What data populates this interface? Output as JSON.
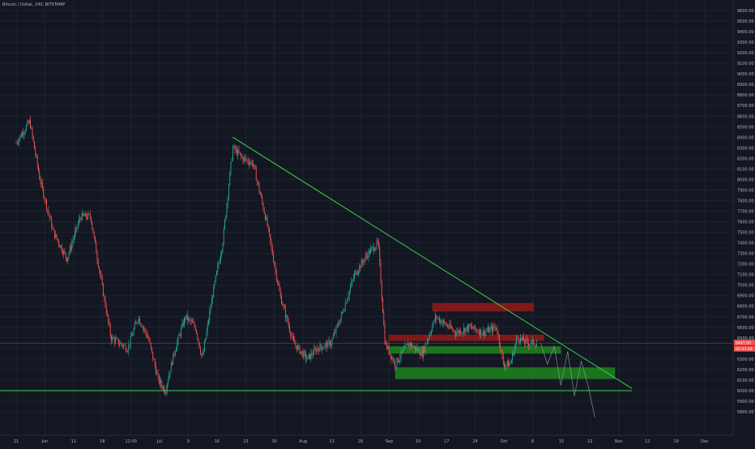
{
  "header": {
    "symbol_title": "Bitcoin / Dollar, 240, BITSTAMP"
  },
  "price_tags": {
    "last_price": "6447.00",
    "countdown": "02:33:48"
  },
  "colors": {
    "background": "#131722",
    "grid": "#1e2230",
    "up_candle": "#26a69a",
    "down_candle": "#ef5350",
    "trendline": "#3fd24a",
    "resistance_zone": "#8b1a1a",
    "support_zone": "#1e7e1e",
    "axis_text": "#b2b5be",
    "price_tag": "#ef5350"
  },
  "chart_data": {
    "type": "candlestick",
    "title": "Bitcoin / Dollar, 240, BITSTAMP",
    "ylim": [
      5700,
      9700
    ],
    "y_ticks": [
      "5800.00",
      "5900.00",
      "6000.00",
      "6100.00",
      "6200.00",
      "6300.00",
      "6400.00",
      "6500.00",
      "6600.00",
      "6700.00",
      "6800.00",
      "6900.00",
      "7000.00",
      "7100.00",
      "7200.00",
      "7300.00",
      "7400.00",
      "7500.00",
      "7600.00",
      "7700.00",
      "7800.00",
      "7900.00",
      "8000.00",
      "8100.00",
      "8200.00",
      "8300.00",
      "8400.00",
      "8500.00",
      "8600.00",
      "8700.00",
      "8800.00",
      "8900.00",
      "9000.00",
      "9100.00",
      "9200.00",
      "9300.00",
      "9400.00",
      "9500.00",
      "9600.00"
    ],
    "x_ticks": [
      "21",
      "Jun",
      "11",
      "18",
      "12:00",
      "Jul",
      "9",
      "16",
      "23",
      "30",
      "Aug",
      "13",
      "20",
      "Sep",
      "10",
      "17",
      "24",
      "Oct",
      "8",
      "15",
      "22",
      "Nov",
      "12",
      "19",
      "Dec"
    ],
    "x_range": [
      "2018-05-20",
      "2018-12-10"
    ],
    "price_path": [
      {
        "date": "2018-05-20",
        "price": 8350
      },
      {
        "date": "2018-05-24",
        "price": 8550
      },
      {
        "date": "2018-05-27",
        "price": 8000
      },
      {
        "date": "2018-05-31",
        "price": 7500
      },
      {
        "date": "2018-06-04",
        "price": 7250
      },
      {
        "date": "2018-06-08",
        "price": 7650
      },
      {
        "date": "2018-06-11",
        "price": 7650
      },
      {
        "date": "2018-06-13",
        "price": 7250
      },
      {
        "date": "2018-06-17",
        "price": 6500
      },
      {
        "date": "2018-06-22",
        "price": 6400
      },
      {
        "date": "2018-06-25",
        "price": 6700
      },
      {
        "date": "2018-06-28",
        "price": 6500
      },
      {
        "date": "2018-07-01",
        "price": 6100
      },
      {
        "date": "2018-07-03",
        "price": 6000
      },
      {
        "date": "2018-07-06",
        "price": 6400
      },
      {
        "date": "2018-07-09",
        "price": 6700
      },
      {
        "date": "2018-07-12",
        "price": 6600
      },
      {
        "date": "2018-07-14",
        "price": 6300
      },
      {
        "date": "2018-07-17",
        "price": 6900
      },
      {
        "date": "2018-07-20",
        "price": 7400
      },
      {
        "date": "2018-07-23",
        "price": 8300
      },
      {
        "date": "2018-07-26",
        "price": 8200
      },
      {
        "date": "2018-07-29",
        "price": 8150
      },
      {
        "date": "2018-08-02",
        "price": 7600
      },
      {
        "date": "2018-08-06",
        "price": 6900
      },
      {
        "date": "2018-08-10",
        "price": 6450
      },
      {
        "date": "2018-08-14",
        "price": 6300
      },
      {
        "date": "2018-08-17",
        "price": 6400
      },
      {
        "date": "2018-08-21",
        "price": 6450
      },
      {
        "date": "2018-08-24",
        "price": 6700
      },
      {
        "date": "2018-08-28",
        "price": 7100
      },
      {
        "date": "2018-09-01",
        "price": 7300
      },
      {
        "date": "2018-09-04",
        "price": 7400
      },
      {
        "date": "2018-09-06",
        "price": 6450
      },
      {
        "date": "2018-09-09",
        "price": 6250
      },
      {
        "date": "2018-09-13",
        "price": 6450
      },
      {
        "date": "2018-09-17",
        "price": 6350
      },
      {
        "date": "2018-09-21",
        "price": 6700
      },
      {
        "date": "2018-09-23",
        "price": 6650
      },
      {
        "date": "2018-09-27",
        "price": 6550
      },
      {
        "date": "2018-10-01",
        "price": 6600
      },
      {
        "date": "2018-10-05",
        "price": 6550
      },
      {
        "date": "2018-10-09",
        "price": 6600
      },
      {
        "date": "2018-10-11",
        "price": 6250
      },
      {
        "date": "2018-10-13",
        "price": 6250
      },
      {
        "date": "2018-10-15",
        "price": 6500
      },
      {
        "date": "2018-10-18",
        "price": 6450
      },
      {
        "date": "2018-10-21",
        "price": 6450
      }
    ],
    "annotations": {
      "descending_trendline": {
        "from": {
          "date": "2018-07-23",
          "price": 8400
        },
        "to": {
          "date": "2018-11-18",
          "price": 6020
        }
      },
      "horizontal_support": {
        "price": 6000
      },
      "resistance_zones": [
        {
          "from": "2018-09-20",
          "to": "2018-10-20",
          "low": 6750,
          "high": 6830
        },
        {
          "from": "2018-09-07",
          "to": "2018-10-23",
          "low": 6470,
          "high": 6530
        }
      ],
      "support_zones": [
        {
          "from": "2018-09-07",
          "to": "2018-10-28",
          "low": 6350,
          "high": 6420
        },
        {
          "from": "2018-09-09",
          "to": "2018-11-13",
          "low": 6110,
          "high": 6220
        }
      ],
      "projection_path": [
        {
          "date": "2018-10-22",
          "price": 6450
        },
        {
          "date": "2018-10-24",
          "price": 6250
        },
        {
          "date": "2018-10-26",
          "price": 6420
        },
        {
          "date": "2018-10-28",
          "price": 6050
        },
        {
          "date": "2018-10-30",
          "price": 6370
        },
        {
          "date": "2018-11-01",
          "price": 5950
        },
        {
          "date": "2018-11-03",
          "price": 6280
        },
        {
          "date": "2018-11-05",
          "price": 6050
        },
        {
          "date": "2018-11-07",
          "price": 5750
        }
      ]
    }
  }
}
